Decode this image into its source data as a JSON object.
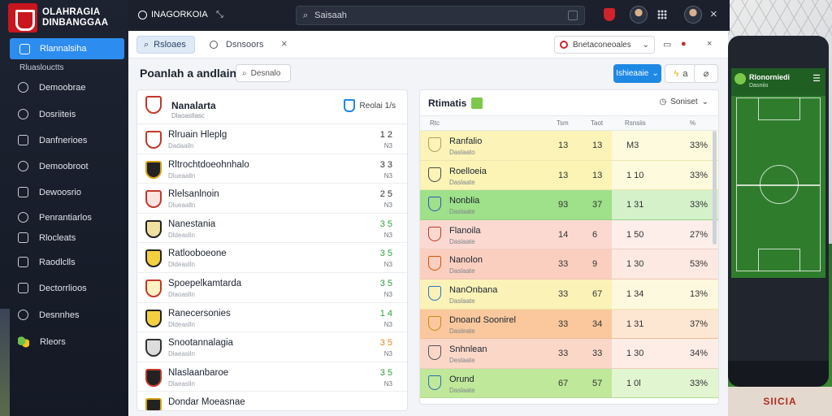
{
  "app": {
    "logo_line1": "OLAHRAGIA",
    "logo_line2": "DINBANGGAA"
  },
  "sidebar": {
    "active_label": "Rlannalsiha",
    "section_label": "Rluaslouctts",
    "items": [
      {
        "label": "Demoobrae",
        "icon": "home-icon"
      },
      {
        "label": "Dosriiteis",
        "icon": "clock-icon"
      },
      {
        "label": "Danfnerioes",
        "icon": "list-icon"
      },
      {
        "label": "Demoobroot",
        "icon": "chart-icon"
      },
      {
        "label": "Dewoosrio",
        "icon": "document-icon"
      },
      {
        "label": "Penrantiarlos",
        "icon": "shield-icon"
      },
      {
        "label": "Rlocleats",
        "icon": "folder-icon"
      },
      {
        "label": "Raodlclls",
        "icon": "table-icon"
      },
      {
        "label": "Dectorrlioos",
        "icon": "calendar-icon"
      },
      {
        "label": "Desnnhes",
        "icon": "trophy-icon"
      },
      {
        "label": "Rleors",
        "icon": "soccer-icon"
      }
    ]
  },
  "topbar": {
    "title": "INAGORKOIA",
    "search_placeholder": "Saisaah"
  },
  "panel": {
    "chip_tab": "Rsloaes",
    "tab2": "Dsnsoors",
    "select_value": "Bnetaconeoales",
    "page_title": "Poanlah a andlaina",
    "title_search": "Desnalo",
    "primary_button": "Ishieaaie",
    "btn_a": "a"
  },
  "left_card": {
    "name": "Nanalarta",
    "sub": "Dlaoasllasc",
    "filter": "Reolai 1/s",
    "rows": [
      {
        "name": "Rlruain Hleplg",
        "sub": "Dadaalln",
        "score": "1 2",
        "score2": "N3",
        "tone": ""
      },
      {
        "name": "Rltrochtdoeohnhalo",
        "sub": "Dlueaalln",
        "score": "3 3",
        "score2": "N3",
        "tone": ""
      },
      {
        "name": "Rlelsanlnoin",
        "sub": "Dlueaalln",
        "score": "2 5",
        "score2": "N3",
        "tone": ""
      },
      {
        "name": "Nanestania",
        "sub": "Dldeaslln",
        "score": "3 5",
        "score2": "N3",
        "tone": "green"
      },
      {
        "name": "Ratlooboeone",
        "sub": "Dldeaslln",
        "score": "3 5",
        "score2": "N3",
        "tone": "green"
      },
      {
        "name": "Spoepelkamtarda",
        "sub": "Dlaoaslln",
        "score": "3 5",
        "score2": "N3",
        "tone": "green"
      },
      {
        "name": "Ranecersonies",
        "sub": "Dldeaslln",
        "score": "1 4",
        "score2": "N3",
        "tone": "green"
      },
      {
        "name": "Snootannalagia",
        "sub": "Dlaeaslln",
        "score": "3 5",
        "score2": "N3",
        "tone": "orange"
      },
      {
        "name": "Nlaslaanbaroe",
        "sub": "Dlaeaslln",
        "score": "3 5",
        "score2": "N3",
        "tone": "green"
      },
      {
        "name": "Dondar Moeasnae",
        "sub": "",
        "score": "",
        "score2": "",
        "tone": ""
      }
    ]
  },
  "right_card": {
    "title": "Rtimatis",
    "sort": "Soniset",
    "columns": [
      "Rtc",
      "Tsm",
      "Taot",
      "Rsnsiis",
      "%"
    ],
    "rows": [
      {
        "name": "Ranfalio",
        "sub": "Daslaato",
        "c1": "13",
        "c2": "13",
        "c3": "M3",
        "pct": "33%",
        "bg": "#fbf3b7",
        "crest": "#b0a060"
      },
      {
        "name": "Roelloeia",
        "sub": "Daslaate",
        "c1": "13",
        "c2": "13",
        "c3": "1 10",
        "pct": "33%",
        "bg": "#fbf4b5",
        "crest": "#4a4a4a"
      },
      {
        "name": "Nonblia",
        "sub": "Daslaate",
        "c1": "93",
        "c2": "37",
        "c3": "1 31",
        "pct": "33%",
        "bg": "#9fe08a",
        "crest": "#2a5bb8"
      },
      {
        "name": "Flanoila",
        "sub": "Daslaate",
        "c1": "14",
        "c2": "6",
        "c3": "1 50",
        "pct": "27%",
        "bg": "#fbd9d1",
        "crest": "#c0392b"
      },
      {
        "name": "Nanolon",
        "sub": "Daslaate",
        "c1": "33",
        "c2": "9",
        "c3": "1 30",
        "pct": "53%",
        "bg": "#fbcfbf",
        "crest": "#d35400"
      },
      {
        "name": "NanOnbana",
        "sub": "Daslaate",
        "c1": "33",
        "c2": "67",
        "c3": "1 34",
        "pct": "13%",
        "bg": "#fbf2b7",
        "crest": "#2c72c7"
      },
      {
        "name": "Dnoand Soonirel",
        "sub": "Dasleate",
        "c1": "33",
        "c2": "34",
        "c3": "1 31",
        "pct": "37%",
        "bg": "#fac89c",
        "crest": "#c58a1a"
      },
      {
        "name": "Snhnlean",
        "sub": "Deslaate",
        "c1": "33",
        "c2": "33",
        "c3": "1 30",
        "pct": "34%",
        "bg": "#fbd7c8",
        "crest": "#555"
      },
      {
        "name": "Orund",
        "sub": "Daslaate",
        "c1": "67",
        "c2": "57",
        "c3": "1 0l",
        "pct": "33%",
        "bg": "#bfe89a",
        "crest": "#2a6fb3"
      }
    ]
  },
  "phone": {
    "app_title": "Rlonorniedi",
    "sub": "Dasniio",
    "signage": "SIICIA"
  }
}
